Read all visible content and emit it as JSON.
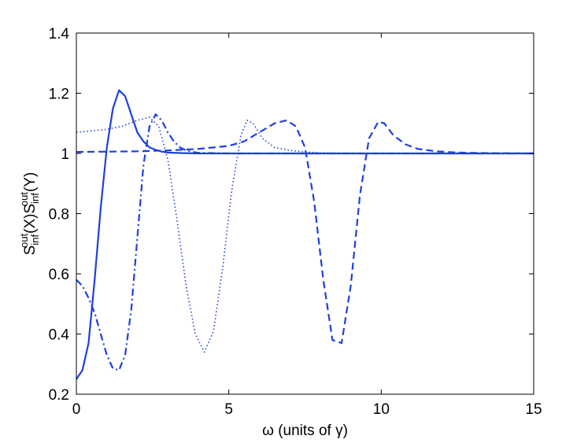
{
  "chart_data": {
    "type": "line",
    "xlabel": "ω (units of γ)",
    "ylabel_parts": [
      {
        "text": "S",
        "style": "main"
      },
      {
        "text": "inf",
        "style": "sub"
      },
      {
        "text": "out",
        "style": "sup"
      },
      {
        "text": "(X)S",
        "style": "main"
      },
      {
        "text": "inf",
        "style": "sub"
      },
      {
        "text": "out",
        "style": "sup"
      },
      {
        "text": "(Y)",
        "style": "main"
      }
    ],
    "xlim": [
      0,
      15
    ],
    "ylim": [
      0.2,
      1.4
    ],
    "xticks": [
      0,
      5,
      10,
      15
    ],
    "xtick_labels": [
      "0",
      "5",
      "10",
      "15"
    ],
    "yticks": [
      0.2,
      0.4,
      0.6,
      0.8,
      1.0,
      1.2,
      1.4
    ],
    "ytick_labels": [
      "0.2",
      "0.4",
      "0.6",
      "0.8",
      "1",
      "1.2",
      "1.4"
    ],
    "grid": false,
    "legend": "none",
    "series_color": "#1f3fe0",
    "series": [
      {
        "style": "solid",
        "x": [
          0,
          0.2,
          0.4,
          0.6,
          0.8,
          1.0,
          1.2,
          1.4,
          1.6,
          1.8,
          2.0,
          2.2,
          2.4,
          2.6,
          2.8,
          3.0,
          3.5,
          4,
          5,
          6,
          8,
          10,
          12,
          15
        ],
        "y": [
          0.25,
          0.28,
          0.37,
          0.58,
          0.82,
          1.02,
          1.15,
          1.21,
          1.19,
          1.13,
          1.07,
          1.04,
          1.02,
          1.012,
          1.006,
          1.003,
          1.001,
          1.0,
          1.0,
          1.0,
          1.0,
          1.0,
          1.0,
          1.0
        ]
      },
      {
        "style": "dashdot",
        "x": [
          0,
          0.2,
          0.4,
          0.6,
          0.8,
          1.0,
          1.2,
          1.4,
          1.6,
          1.8,
          2.0,
          2.2,
          2.4,
          2.6,
          2.8,
          3.0,
          3.2,
          3.4,
          3.6,
          3.8,
          4.0,
          4.5,
          5,
          6,
          8,
          10,
          12,
          15
        ],
        "y": [
          0.58,
          0.56,
          0.52,
          0.47,
          0.4,
          0.33,
          0.285,
          0.28,
          0.33,
          0.48,
          0.72,
          0.96,
          1.09,
          1.13,
          1.11,
          1.07,
          1.04,
          1.02,
          1.01,
          1.005,
          1.002,
          1.001,
          1.0,
          1.0,
          1.0,
          1.0,
          1.0,
          1.0
        ]
      },
      {
        "style": "dotted",
        "x": [
          0,
          0.5,
          1.0,
          1.5,
          2.0,
          2.4,
          2.7,
          3.0,
          3.3,
          3.6,
          3.9,
          4.2,
          4.5,
          4.8,
          5.1,
          5.4,
          5.6,
          5.8,
          6.1,
          6.5,
          7.0,
          7.5,
          8,
          9,
          10,
          12,
          15
        ],
        "y": [
          1.07,
          1.075,
          1.08,
          1.09,
          1.11,
          1.12,
          1.09,
          0.98,
          0.78,
          0.56,
          0.4,
          0.34,
          0.41,
          0.62,
          0.88,
          1.06,
          1.11,
          1.1,
          1.05,
          1.02,
          1.01,
          1.005,
          1.002,
          1.0,
          1.0,
          1.0,
          1.0
        ]
      },
      {
        "style": "dashed",
        "x": [
          0,
          1,
          2,
          3,
          4,
          5,
          5.5,
          6,
          6.5,
          6.9,
          7.2,
          7.5,
          7.8,
          8.1,
          8.4,
          8.7,
          9.0,
          9.3,
          9.6,
          9.9,
          10.1,
          10.4,
          10.8,
          11.2,
          11.8,
          12.5,
          13.5,
          15
        ],
        "y": [
          1.005,
          1.006,
          1.007,
          1.01,
          1.015,
          1.025,
          1.04,
          1.07,
          1.1,
          1.11,
          1.09,
          1.02,
          0.84,
          0.58,
          0.38,
          0.37,
          0.56,
          0.86,
          1.05,
          1.105,
          1.1,
          1.06,
          1.03,
          1.015,
          1.007,
          1.003,
          1.001,
          1.0
        ]
      }
    ]
  }
}
